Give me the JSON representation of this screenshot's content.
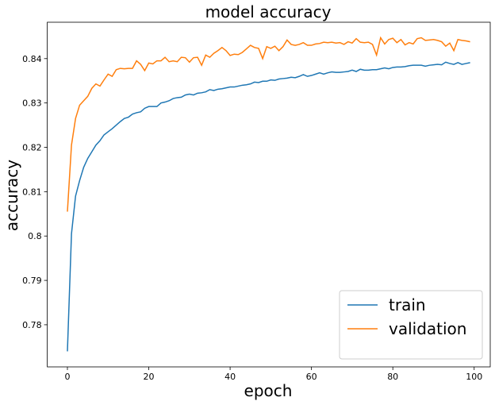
{
  "chart_data": {
    "type": "line",
    "title": "model accuracy",
    "x_label": "epoch",
    "y_label": "accuracy",
    "x": [
      0,
      1,
      2,
      3,
      4,
      5,
      6,
      7,
      8,
      9,
      10,
      11,
      12,
      13,
      14,
      15,
      16,
      17,
      18,
      19,
      20,
      21,
      22,
      23,
      24,
      25,
      26,
      27,
      28,
      29,
      30,
      31,
      32,
      33,
      34,
      35,
      36,
      37,
      38,
      39,
      40,
      41,
      42,
      43,
      44,
      45,
      46,
      47,
      48,
      49,
      50,
      51,
      52,
      53,
      54,
      55,
      56,
      57,
      58,
      59,
      60,
      61,
      62,
      63,
      64,
      65,
      66,
      67,
      68,
      69,
      70,
      71,
      72,
      73,
      74,
      75,
      76,
      77,
      78,
      79,
      80,
      81,
      82,
      83,
      84,
      85,
      86,
      87,
      88,
      89,
      90,
      91,
      92,
      93,
      94,
      95,
      96,
      97,
      98,
      99
    ],
    "series": [
      {
        "name": "train",
        "color": "#1f77b4",
        "values": [
          0.774,
          0.8005,
          0.809,
          0.8125,
          0.8155,
          0.8175,
          0.819,
          0.8205,
          0.8215,
          0.8228,
          0.8235,
          0.8242,
          0.825,
          0.8258,
          0.8265,
          0.8268,
          0.8275,
          0.8278,
          0.828,
          0.8288,
          0.8292,
          0.8292,
          0.8292,
          0.83,
          0.8302,
          0.8305,
          0.831,
          0.8312,
          0.8313,
          0.8318,
          0.832,
          0.8318,
          0.8322,
          0.8323,
          0.8325,
          0.833,
          0.8328,
          0.8331,
          0.8332,
          0.8334,
          0.8336,
          0.8336,
          0.8338,
          0.834,
          0.8341,
          0.8343,
          0.8347,
          0.8346,
          0.8349,
          0.8349,
          0.8352,
          0.8351,
          0.8354,
          0.8355,
          0.8356,
          0.8358,
          0.8357,
          0.836,
          0.8364,
          0.836,
          0.8362,
          0.8365,
          0.8368,
          0.8365,
          0.8368,
          0.837,
          0.8369,
          0.8369,
          0.837,
          0.8371,
          0.8374,
          0.8371,
          0.8376,
          0.8374,
          0.8374,
          0.8375,
          0.8375,
          0.8377,
          0.8379,
          0.8377,
          0.838,
          0.8381,
          0.8381,
          0.8382,
          0.8384,
          0.8385,
          0.8385,
          0.8385,
          0.8383,
          0.8385,
          0.8386,
          0.8387,
          0.8386,
          0.8392,
          0.8389,
          0.8387,
          0.8391,
          0.8387,
          0.8389,
          0.8391
        ]
      },
      {
        "name": "validation",
        "color": "#ff7f0e",
        "values": [
          0.8055,
          0.8205,
          0.8265,
          0.8295,
          0.8305,
          0.8315,
          0.8333,
          0.8343,
          0.8338,
          0.8352,
          0.8365,
          0.836,
          0.8375,
          0.8378,
          0.8377,
          0.8378,
          0.8378,
          0.8395,
          0.8387,
          0.8373,
          0.839,
          0.8388,
          0.8395,
          0.8395,
          0.8403,
          0.8393,
          0.8395,
          0.8393,
          0.8403,
          0.8402,
          0.8392,
          0.8402,
          0.8403,
          0.8385,
          0.8408,
          0.8403,
          0.8412,
          0.8418,
          0.8425,
          0.8418,
          0.8407,
          0.841,
          0.8409,
          0.8414,
          0.8422,
          0.843,
          0.8425,
          0.8423,
          0.84,
          0.8427,
          0.8423,
          0.8428,
          0.8418,
          0.8427,
          0.8442,
          0.8432,
          0.843,
          0.8432,
          0.8436,
          0.843,
          0.843,
          0.8433,
          0.8434,
          0.8437,
          0.8436,
          0.8437,
          0.8435,
          0.8436,
          0.8432,
          0.8438,
          0.8435,
          0.8445,
          0.8437,
          0.8436,
          0.8437,
          0.8432,
          0.8408,
          0.8447,
          0.8433,
          0.8443,
          0.8446,
          0.8436,
          0.8443,
          0.8431,
          0.8436,
          0.8433,
          0.8445,
          0.8447,
          0.8441,
          0.8442,
          0.8443,
          0.8441,
          0.8438,
          0.8428,
          0.8435,
          0.8418,
          0.8443,
          0.8441,
          0.844,
          0.8438
        ]
      }
    ],
    "xlim": [
      -4.95,
      103.95
    ],
    "xticks": [
      0,
      20,
      40,
      60,
      80,
      100
    ],
    "ylim": [
      0.7705,
      0.8482
    ],
    "yticks": [
      0.78,
      0.79,
      0.8,
      {
        "value": 0.81,
        "label": "0.81"
      },
      0.82,
      0.83,
      0.84
    ],
    "legend": "lower right",
    "grid": false
  }
}
